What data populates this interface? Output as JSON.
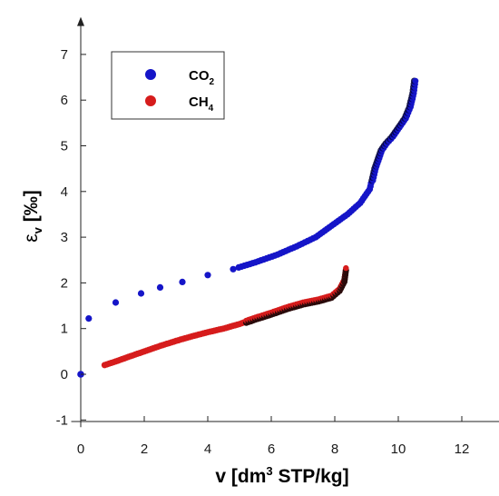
{
  "chart_data": {
    "type": "scatter",
    "xlabel_main": "v [dm",
    "xlabel_sup": "3",
    "xlabel_rest": " STP/kg]",
    "ylabel_symbol": "ε",
    "ylabel_sub": "v",
    "ylabel_unit": " [‰]",
    "xlim": [
      -0.3,
      13.3
    ],
    "ylim": [
      -1.0,
      7.9
    ],
    "xticks": [
      0,
      2,
      4,
      6,
      8,
      10,
      12
    ],
    "yticks": [
      -1,
      0,
      1,
      2,
      3,
      4,
      5,
      6,
      7
    ],
    "grid": false,
    "legend_position": "top-left",
    "colors": {
      "co2": "#1515c8",
      "ch4": "#d61c1c",
      "ch4_dense": "#2a0a0a",
      "co2_dense": "#00003a"
    },
    "legend": [
      {
        "label_main": "CO",
        "label_sub": "2",
        "color": "#1515c8"
      },
      {
        "label_main": "CH",
        "label_sub": "4",
        "color": "#d61c1c"
      }
    ],
    "series": [
      {
        "name": "CO2",
        "curve_x": [
          0,
          0.25,
          1.1,
          1.9,
          2.5,
          3.2,
          4.0,
          4.8,
          5.5,
          6.2,
          6.8,
          7.4,
          7.9,
          8.4,
          8.8,
          9.1,
          9.25,
          9.45,
          9.6,
          9.8,
          10.0,
          10.2,
          10.35,
          10.45,
          10.5
        ],
        "curve_y": [
          0,
          1.22,
          1.57,
          1.77,
          1.9,
          2.02,
          2.17,
          2.3,
          2.45,
          2.62,
          2.8,
          3.0,
          3.25,
          3.5,
          3.75,
          4.05,
          4.5,
          4.9,
          5.05,
          5.2,
          5.4,
          5.6,
          5.85,
          6.15,
          6.42
        ]
      },
      {
        "name": "CH4",
        "curve_x": [
          0.75,
          1.1,
          1.5,
          2.0,
          2.5,
          3.0,
          3.5,
          4.0,
          4.5,
          5.0,
          5.5,
          6.0,
          6.5,
          7.0,
          7.5,
          7.9,
          8.15,
          8.3,
          8.35
        ],
        "curve_y": [
          0.2,
          0.28,
          0.38,
          0.5,
          0.62,
          0.73,
          0.83,
          0.92,
          1.0,
          1.1,
          1.22,
          1.33,
          1.45,
          1.55,
          1.62,
          1.7,
          1.85,
          2.05,
          2.3
        ]
      }
    ]
  }
}
